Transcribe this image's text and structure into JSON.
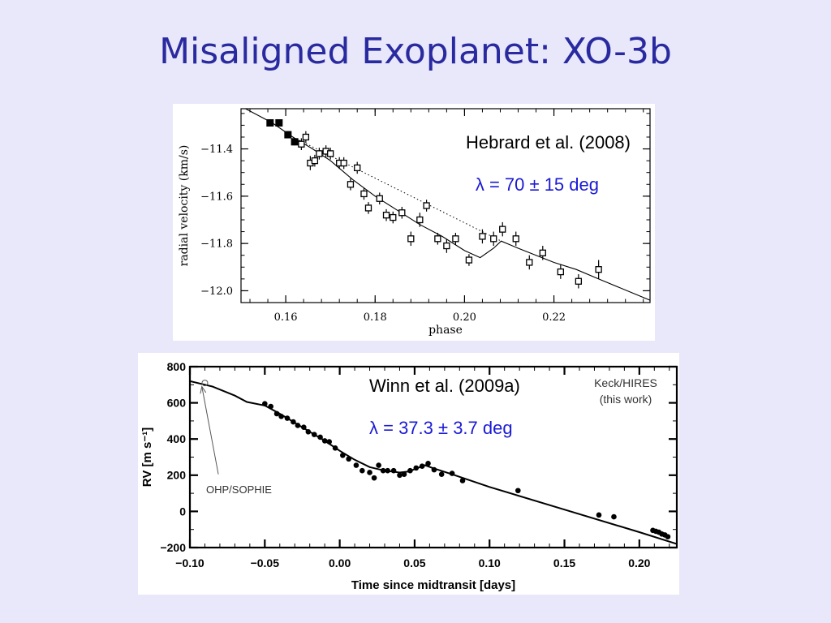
{
  "slide": {
    "title": "Misaligned Exoplanet: XO-3b"
  },
  "chart_data": [
    {
      "type": "scatter",
      "title": "",
      "annotations": [
        "Hebrard et al. (2008)",
        "λ = 70 ± 15 deg"
      ],
      "xlabel": "phase",
      "ylabel": "radial velocity (km/s)",
      "xlim": [
        0.15,
        0.2415
      ],
      "ylim": [
        -12.05,
        -11.23
      ],
      "xticks": [
        0.16,
        0.18,
        0.2,
        0.22
      ],
      "xtick_labels": [
        "0.16",
        "0.18",
        "0.20",
        "0.22"
      ],
      "yticks": [
        -11.4,
        -11.6,
        -11.8,
        -12.0
      ],
      "ytick_labels": [
        "−11.4",
        "−11.6",
        "−11.8",
        "−12.0"
      ],
      "grid": false,
      "series": [
        {
          "marker": "filled-square",
          "x": [
            0.1565,
            0.1585,
            0.1605,
            0.162
          ],
          "y": [
            -11.29,
            -11.29,
            -11.34,
            -11.37
          ],
          "yerr": [
            0.015,
            0.015,
            0.015,
            0.015
          ]
        },
        {
          "marker": "open-square",
          "x": [
            0.1635,
            0.1645,
            0.1655,
            0.1665,
            0.1675,
            0.169,
            0.17,
            0.172,
            0.173,
            0.1745,
            0.176,
            0.1775,
            0.1785,
            0.181,
            0.1825,
            0.184,
            0.186,
            0.188,
            0.19,
            0.1915,
            0.194,
            0.196,
            0.198,
            0.201,
            0.204,
            0.2065,
            0.2085,
            0.2115,
            0.2145,
            0.2175,
            0.2215,
            0.2255,
            0.23
          ],
          "y": [
            -11.38,
            -11.35,
            -11.46,
            -11.45,
            -11.42,
            -11.41,
            -11.42,
            -11.46,
            -11.46,
            -11.55,
            -11.48,
            -11.59,
            -11.65,
            -11.61,
            -11.68,
            -11.69,
            -11.67,
            -11.78,
            -11.7,
            -11.64,
            -11.78,
            -11.81,
            -11.78,
            -11.87,
            -11.77,
            -11.78,
            -11.74,
            -11.78,
            -11.88,
            -11.84,
            -11.92,
            -11.96,
            -11.91
          ],
          "yerr": [
            0.025,
            0.025,
            0.03,
            0.025,
            0.025,
            0.025,
            0.025,
            0.025,
            0.025,
            0.025,
            0.025,
            0.025,
            0.025,
            0.025,
            0.025,
            0.025,
            0.025,
            0.03,
            0.03,
            0.025,
            0.025,
            0.03,
            0.025,
            0.025,
            0.03,
            0.03,
            0.03,
            0.03,
            0.03,
            0.03,
            0.03,
            0.03,
            0.04
          ]
        }
      ],
      "model_line": {
        "style": "solid",
        "x": [
          0.15,
          0.157,
          0.1616,
          0.166,
          0.17,
          0.175,
          0.18,
          0.185,
          0.19,
          0.195,
          0.2,
          0.2035,
          0.2065,
          0.2082,
          0.212,
          0.216,
          0.22,
          0.225,
          0.23,
          0.2415
        ],
        "y": [
          -11.22,
          -11.29,
          -11.35,
          -11.4,
          -11.45,
          -11.53,
          -11.6,
          -11.66,
          -11.72,
          -11.77,
          -11.83,
          -11.86,
          -11.82,
          -11.79,
          -11.82,
          -11.85,
          -11.88,
          -11.91,
          -11.95,
          -12.04
        ]
      },
      "dotted_line": {
        "style": "dotted",
        "x": [
          0.1616,
          0.2082
        ],
        "y": [
          -11.35,
          -11.79
        ]
      }
    },
    {
      "type": "scatter",
      "title": "",
      "annotations": [
        "Winn et al. (2009a)",
        "λ = 37.3 ± 3.7 deg",
        "Keck/HIRES",
        "(this work)",
        "OHP/SOPHIE"
      ],
      "xlabel": "Time since midtransit [days]",
      "ylabel": "RV [m s⁻¹]",
      "xlim": [
        -0.1,
        0.225
      ],
      "ylim": [
        -200,
        800
      ],
      "xticks": [
        -0.1,
        -0.05,
        0.0,
        0.05,
        0.1,
        0.15,
        0.2
      ],
      "xtick_labels": [
        "−0.10",
        "−0.05",
        "0.00",
        "0.05",
        "0.10",
        "0.15",
        "0.20"
      ],
      "yticks": [
        800,
        600,
        400,
        200,
        0,
        -200
      ],
      "ytick_labels": [
        "800",
        "600",
        "400",
        "200",
        "0",
        "−200"
      ],
      "grid": false,
      "series": [
        {
          "name": "OHP/SOPHIE",
          "marker": "open-circle",
          "x": [
            -0.09
          ],
          "y": [
            710
          ]
        },
        {
          "name": "Keck/HIRES",
          "marker": "filled-circle",
          "x": [
            -0.05,
            -0.046,
            -0.042,
            -0.039,
            -0.035,
            -0.031,
            -0.028,
            -0.024,
            -0.021,
            -0.017,
            -0.013,
            -0.01,
            -0.007,
            -0.003,
            0.002,
            0.006,
            0.011,
            0.015,
            0.02,
            0.023,
            0.026,
            0.029,
            0.032,
            0.036,
            0.04,
            0.043,
            0.047,
            0.051,
            0.055,
            0.059,
            0.063,
            0.068,
            0.075,
            0.082,
            0.119,
            0.173,
            0.183,
            0.209,
            0.211,
            0.213,
            0.215,
            0.217,
            0.219
          ],
          "y": [
            595,
            580,
            540,
            525,
            515,
            495,
            475,
            465,
            440,
            425,
            410,
            390,
            385,
            350,
            310,
            290,
            255,
            225,
            215,
            185,
            255,
            225,
            225,
            225,
            200,
            205,
            225,
            240,
            250,
            265,
            230,
            205,
            210,
            170,
            115,
            -20,
            -30,
            -105,
            -110,
            -115,
            -125,
            -130,
            -140
          ]
        }
      ],
      "model_line": {
        "style": "solid",
        "x": [
          -0.1,
          -0.085,
          -0.07,
          -0.062,
          -0.05,
          -0.04,
          -0.03,
          -0.02,
          -0.01,
          0.0,
          0.01,
          0.02,
          0.03,
          0.04,
          0.046,
          0.052,
          0.057,
          0.062,
          0.075,
          0.1,
          0.15,
          0.2,
          0.225
        ],
        "y": [
          720,
          690,
          640,
          605,
          585,
          540,
          490,
          440,
          390,
          335,
          285,
          245,
          225,
          215,
          220,
          240,
          255,
          240,
          205,
          135,
          10,
          -115,
          -180
        ]
      },
      "pointer_line": {
        "from": {
          "x": -0.081,
          "y": 205
        },
        "to": {
          "x": -0.092,
          "y": 690
        }
      }
    }
  ]
}
